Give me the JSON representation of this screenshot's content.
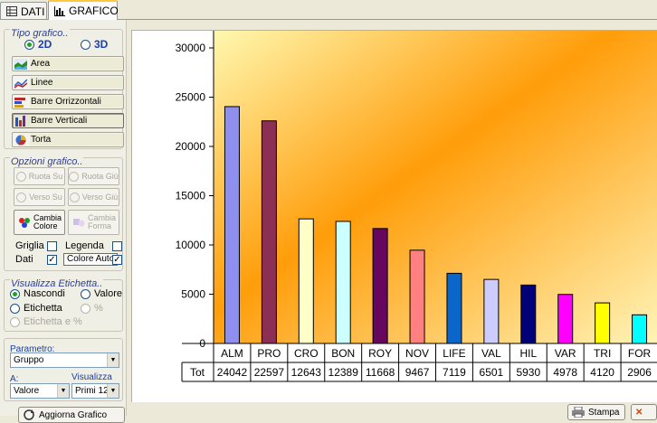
{
  "tabs": [
    {
      "label": "DATI",
      "icon": "table-icon",
      "active": false
    },
    {
      "label": "GRAFICO",
      "icon": "bar-chart-icon",
      "active": true
    }
  ],
  "tipo_grafico": {
    "title": "Tipo grafico..",
    "mode_2d": "2D",
    "mode_3d": "3D",
    "selected_mode": "2D",
    "buttons": [
      {
        "label": "Area",
        "icon": "area-chart-icon"
      },
      {
        "label": "Linee",
        "icon": "line-chart-icon"
      },
      {
        "label": "Barre Orrizzontali",
        "icon": "horizontal-bar-icon"
      },
      {
        "label": "Barre Verticali",
        "icon": "vertical-bar-icon",
        "pressed": true
      },
      {
        "label": "Torta",
        "icon": "pie-chart-icon"
      }
    ]
  },
  "opzioni_grafico": {
    "title": "Opzioni grafico..",
    "ruota_su": "Ruota Su",
    "ruota_giu": "Ruota Giù",
    "verso_su": "Verso Su",
    "verso_giu": "Verso Giù",
    "cambia_colore": "Cambia Colore",
    "cambia_forma": "Cambia Forma",
    "griglia": "Griglia",
    "legenda": "Legenda",
    "dati": "Dati",
    "colore_auto": "Colore Auto",
    "griglia_checked": false,
    "legenda_checked": false,
    "dati_checked": true,
    "colore_auto_checked": true
  },
  "visualizza_etichetta": {
    "title": "Visualizza Etichetta..",
    "nascondi": "Nascondi",
    "valore": "Valore",
    "etichetta": "Etichetta",
    "percent": "%",
    "etichetta_percent": "Etichetta e %",
    "selected": "Nascondi"
  },
  "parametro": {
    "label": "Parametro:",
    "value": "Gruppo",
    "a_label": "A:",
    "a_value": "Valore",
    "visualizza_label": "Visualizza",
    "visualizza_value": "Primi 12"
  },
  "bottom": {
    "aggiorna": "Aggiorna Grafico",
    "stampa": "Stampa"
  },
  "colors": {
    "plot_gradient_start": "#fff8b0",
    "plot_gradient_mid": "#ff9d0a",
    "plot_gradient_end": "#fff4b8"
  },
  "chart_data": {
    "type": "bar",
    "categories": [
      "ALM",
      "PRO",
      "CRO",
      "BON",
      "ROY",
      "NOV",
      "LIFE",
      "VAL",
      "HIL",
      "VAR",
      "TRI",
      "FOR"
    ],
    "values": [
      24042,
      22597,
      12643,
      12389,
      11668,
      9467,
      7119,
      6501,
      5930,
      4978,
      4120,
      2906
    ],
    "bar_colors": [
      "#8f8ff0",
      "#8b2f55",
      "#ffffc8",
      "#ccffff",
      "#66065f",
      "#ff8080",
      "#0a66c8",
      "#ccccff",
      "#000078",
      "#ff00ff",
      "#ffff00",
      "#00ffff"
    ],
    "yticks": [
      0,
      5000,
      10000,
      15000,
      20000,
      25000,
      30000
    ],
    "ylim": [
      0,
      30000
    ],
    "table_row_label": "Tot",
    "grid": false,
    "legend": "none"
  }
}
